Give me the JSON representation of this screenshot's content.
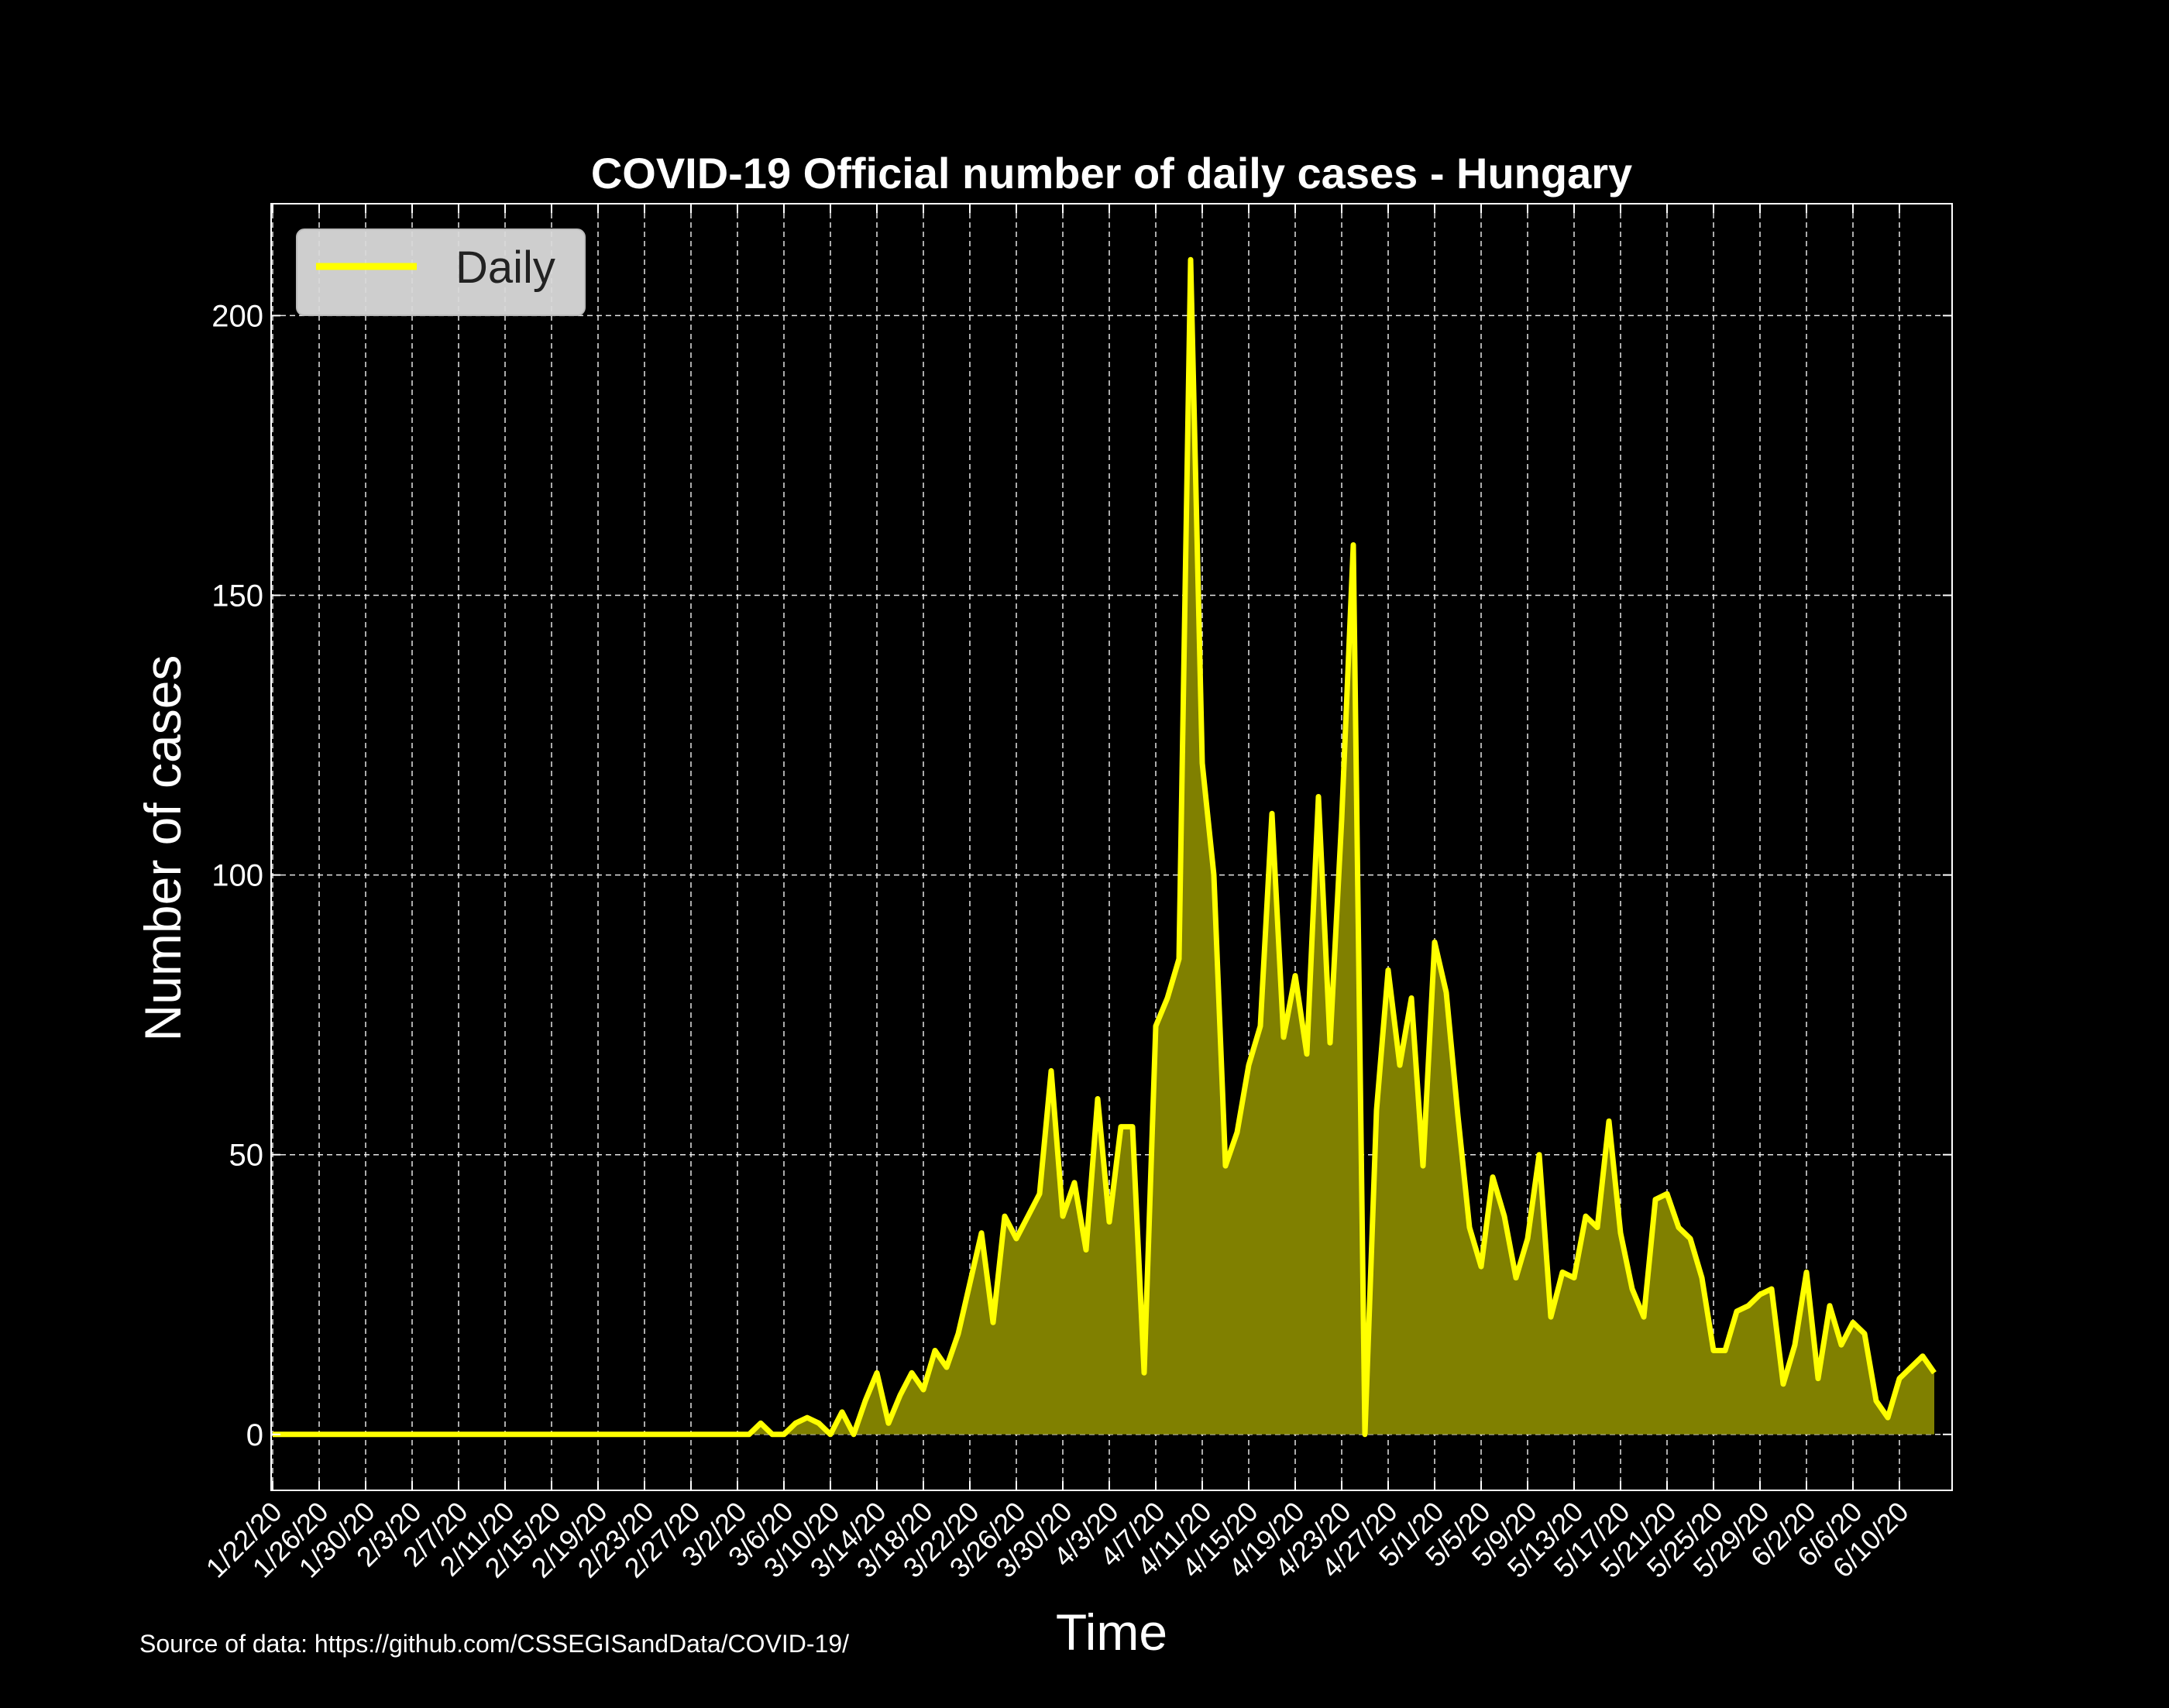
{
  "colors": {
    "background": "#000000",
    "line": "#ffff00",
    "fill": "#808000",
    "grid": "#ffffff",
    "text": "#ffffff",
    "legend_bg": "#d9d9d9",
    "legend_text": "#222222"
  },
  "source_note": "Source of data: https://github.com/CSSEGISandData/COVID-19/",
  "chart_data": {
    "type": "area",
    "title": "COVID-19 Official number of daily cases - Hungary",
    "xlabel": "Time",
    "ylabel": "Number of cases",
    "x_start": "1/22/20",
    "x_end": "6/11/20",
    "ylim": [
      -10,
      220
    ],
    "yticks": [
      0,
      50,
      100,
      150,
      200
    ],
    "xticks": [
      "1/22/20",
      "1/26/20",
      "1/30/20",
      "2/3/20",
      "2/7/20",
      "2/11/20",
      "2/15/20",
      "2/19/20",
      "2/23/20",
      "2/27/20",
      "3/2/20",
      "3/6/20",
      "3/10/20",
      "3/14/20",
      "3/18/20",
      "3/22/20",
      "3/26/20",
      "3/30/20",
      "4/3/20",
      "4/7/20",
      "4/11/20",
      "4/15/20",
      "4/19/20",
      "4/23/20",
      "4/27/20",
      "5/1/20",
      "5/5/20",
      "5/9/20",
      "5/13/20",
      "5/17/20",
      "5/21/20",
      "5/25/20",
      "5/29/20",
      "6/2/20",
      "6/6/20",
      "6/10/20"
    ],
    "grid": true,
    "legend_position": "upper-left",
    "series": [
      {
        "name": "Daily",
        "values": [
          0,
          0,
          0,
          0,
          0,
          0,
          0,
          0,
          0,
          0,
          0,
          0,
          0,
          0,
          0,
          0,
          0,
          0,
          0,
          0,
          0,
          0,
          0,
          0,
          0,
          0,
          0,
          0,
          0,
          0,
          0,
          0,
          0,
          0,
          0,
          0,
          0,
          0,
          0,
          0,
          0,
          0,
          2,
          0,
          0,
          2,
          3,
          2,
          0,
          4,
          0,
          6,
          11,
          2,
          7,
          11,
          8,
          15,
          12,
          18,
          27,
          36,
          20,
          39,
          35,
          39,
          43,
          65,
          39,
          45,
          33,
          60,
          38,
          55,
          55,
          11,
          73,
          78,
          85,
          210,
          120,
          100,
          48,
          54,
          66,
          73,
          111,
          71,
          82,
          68,
          114,
          70,
          110,
          159,
          0,
          58,
          83,
          66,
          78,
          48,
          88,
          79,
          57,
          37,
          30,
          46,
          39,
          28,
          35,
          50,
          21,
          29,
          28,
          39,
          37,
          56,
          36,
          26,
          21,
          42,
          43,
          37,
          35,
          28,
          15,
          15,
          22,
          23,
          25,
          26,
          9,
          16,
          29,
          10,
          23,
          16,
          20,
          18,
          6,
          3,
          10,
          12,
          14,
          11
        ]
      }
    ]
  }
}
